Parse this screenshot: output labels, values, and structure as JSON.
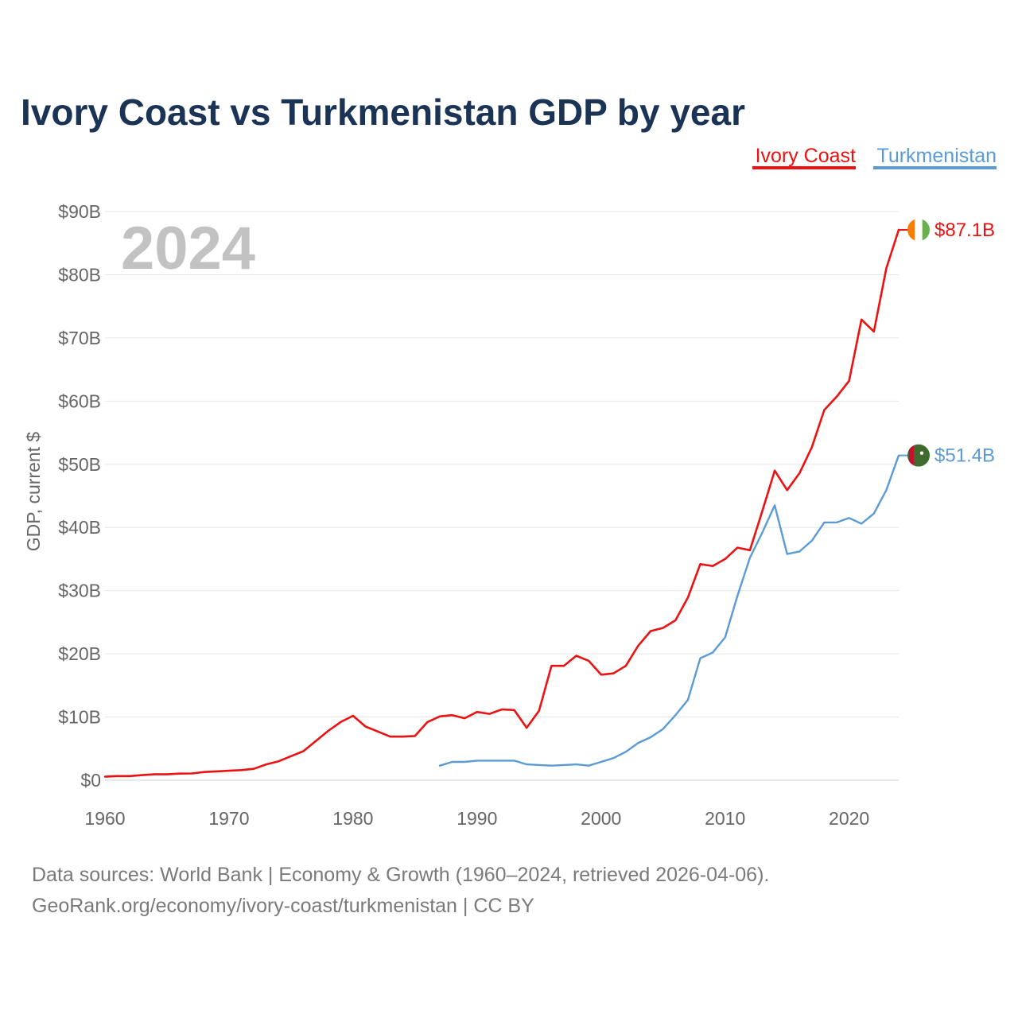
{
  "chart_data": {
    "type": "line",
    "title": "Ivory Coast vs Turkmenistan GDP by year",
    "ylabel": "GDP, current $",
    "xlabel": "",
    "xlim": [
      1960,
      2024
    ],
    "ylim": [
      0,
      90
    ],
    "x_ticks": [
      {
        "value": 1960,
        "label": "1960"
      },
      {
        "value": 1970,
        "label": "1970"
      },
      {
        "value": 1980,
        "label": "1980"
      },
      {
        "value": 1990,
        "label": "1990"
      },
      {
        "value": 2000,
        "label": "2000"
      },
      {
        "value": 2010,
        "label": "2010"
      },
      {
        "value": 2020,
        "label": "2020"
      }
    ],
    "y_ticks": [
      {
        "value": 0,
        "label": "$0"
      },
      {
        "value": 10,
        "label": "$10B"
      },
      {
        "value": 20,
        "label": "$20B"
      },
      {
        "value": 30,
        "label": "$30B"
      },
      {
        "value": 40,
        "label": "$40B"
      },
      {
        "value": 50,
        "label": "$50B"
      },
      {
        "value": 60,
        "label": "$60B"
      },
      {
        "value": 70,
        "label": "$70B"
      },
      {
        "value": 80,
        "label": "$80B"
      },
      {
        "value": 90,
        "label": "$90B"
      }
    ],
    "year_label": "2024",
    "series": [
      {
        "name": "Ivory Coast",
        "color": "#ee1111",
        "end_label": "$87.1B",
        "x": [
          1960,
          1961,
          1962,
          1963,
          1964,
          1965,
          1966,
          1967,
          1968,
          1969,
          1970,
          1971,
          1972,
          1973,
          1974,
          1975,
          1976,
          1977,
          1978,
          1979,
          1980,
          1981,
          1982,
          1983,
          1984,
          1985,
          1986,
          1987,
          1988,
          1989,
          1990,
          1991,
          1992,
          1993,
          1994,
          1995,
          1996,
          1997,
          1998,
          1999,
          2000,
          2001,
          2002,
          2003,
          2004,
          2005,
          2006,
          2007,
          2008,
          2009,
          2010,
          2011,
          2012,
          2013,
          2014,
          2015,
          2016,
          2017,
          2018,
          2019,
          2020,
          2021,
          2022,
          2023,
          2024
        ],
        "values": [
          0.55,
          0.65,
          0.66,
          0.8,
          0.93,
          0.93,
          1.05,
          1.07,
          1.3,
          1.4,
          1.5,
          1.6,
          1.8,
          2.5,
          3.0,
          3.8,
          4.6,
          6.2,
          7.8,
          9.2,
          10.2,
          8.5,
          7.7,
          6.9,
          6.9,
          7.0,
          9.2,
          10.1,
          10.3,
          9.8,
          10.8,
          10.5,
          11.2,
          11.1,
          8.3,
          11.0,
          18.1,
          18.1,
          19.7,
          18.9,
          16.7,
          16.9,
          18.1,
          21.3,
          23.6,
          24.1,
          25.3,
          28.9,
          34.2,
          33.9,
          35.0,
          36.8,
          36.4,
          42.6,
          49.0,
          45.9,
          48.6,
          52.7,
          58.6,
          60.7,
          63.2,
          72.9,
          71.0,
          81.0,
          87.1
        ]
      },
      {
        "name": "Turkmenistan",
        "color": "#5b9bd5",
        "end_label": "$51.4B",
        "x": [
          1987,
          1988,
          1989,
          1990,
          1991,
          1992,
          1993,
          1994,
          1995,
          1996,
          1997,
          1998,
          1999,
          2000,
          2001,
          2002,
          2003,
          2004,
          2005,
          2006,
          2007,
          2008,
          2009,
          2010,
          2011,
          2012,
          2013,
          2014,
          2015,
          2016,
          2017,
          2018,
          2019,
          2020,
          2021,
          2022,
          2023,
          2024
        ],
        "values": [
          2.3,
          2.9,
          2.9,
          3.1,
          3.1,
          3.1,
          3.1,
          2.5,
          2.4,
          2.3,
          2.4,
          2.5,
          2.3,
          2.9,
          3.5,
          4.5,
          5.9,
          6.8,
          8.1,
          10.3,
          12.7,
          19.3,
          20.2,
          22.6,
          29.2,
          35.2,
          39.2,
          43.5,
          35.8,
          36.2,
          37.9,
          40.8,
          40.8,
          41.5,
          40.6,
          42.2,
          45.9,
          51.4
        ]
      }
    ],
    "legend": [
      "Ivory Coast",
      "Turkmenistan"
    ],
    "legend_placement": "top-right"
  },
  "source": {
    "line1": "Data sources: World Bank | Economy & Growth (1960–2024, retrieved 2026-04-06).",
    "line2": "GeoRank.org/economy/ivory-coast/turkmenistan | CC BY"
  },
  "flags": {
    "ivory_coast": [
      "#f77f00",
      "#ffffff",
      "#6ab04c"
    ],
    "turkmenistan": "#3f6b2e",
    "turkmenistan_stripe": "#c8102e"
  }
}
